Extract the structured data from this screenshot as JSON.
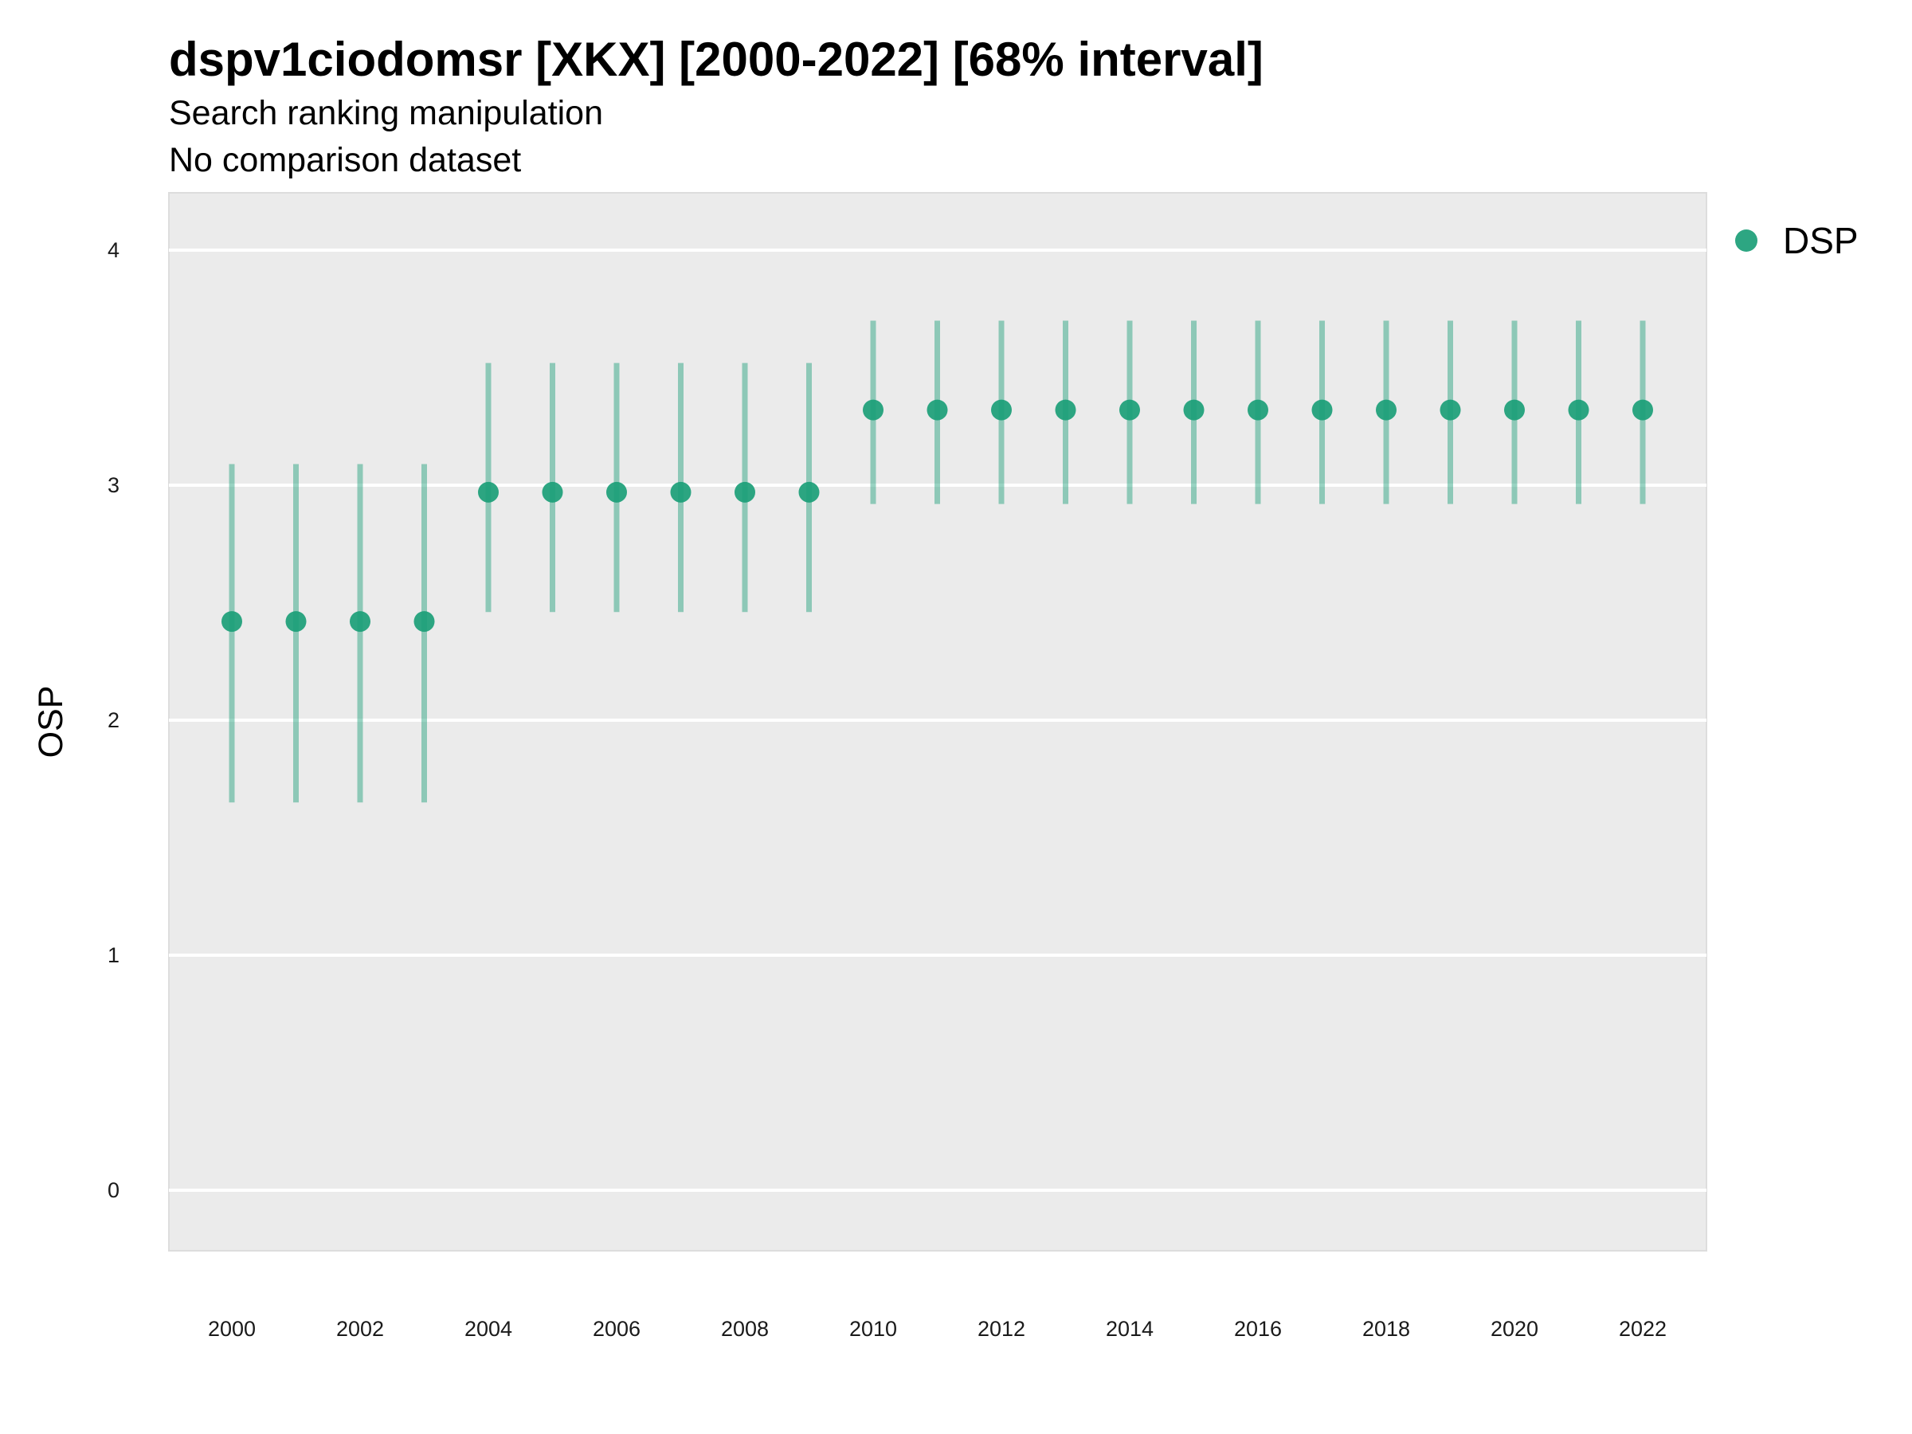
{
  "chart_data": {
    "type": "scatter",
    "title": "dspv1ciodomsr [XKX] [2000-2022] [68% interval]",
    "subtitle_lines": [
      "Search ranking manipulation",
      "No comparison dataset"
    ],
    "xlabel": "",
    "ylabel": "OSP",
    "ylim": [
      -0.25,
      4.25
    ],
    "xlim": [
      1999,
      2023
    ],
    "y_ticks": [
      "0",
      "1",
      "2",
      "3",
      "4"
    ],
    "x_ticks": [
      "2000",
      "2002",
      "2004",
      "2006",
      "2008",
      "2010",
      "2012",
      "2014",
      "2016",
      "2018",
      "2020",
      "2022"
    ],
    "grid": true,
    "legend_position": "right",
    "series": [
      {
        "name": "DSP",
        "color": "#1b9e77",
        "points": [
          {
            "x": 2000,
            "y": 2.42,
            "lower": 1.65,
            "upper": 3.09
          },
          {
            "x": 2001,
            "y": 2.42,
            "lower": 1.65,
            "upper": 3.09
          },
          {
            "x": 2002,
            "y": 2.42,
            "lower": 1.65,
            "upper": 3.09
          },
          {
            "x": 2003,
            "y": 2.42,
            "lower": 1.65,
            "upper": 3.09
          },
          {
            "x": 2004,
            "y": 2.97,
            "lower": 2.46,
            "upper": 3.52
          },
          {
            "x": 2005,
            "y": 2.97,
            "lower": 2.46,
            "upper": 3.52
          },
          {
            "x": 2006,
            "y": 2.97,
            "lower": 2.46,
            "upper": 3.52
          },
          {
            "x": 2007,
            "y": 2.97,
            "lower": 2.46,
            "upper": 3.52
          },
          {
            "x": 2008,
            "y": 2.97,
            "lower": 2.46,
            "upper": 3.52
          },
          {
            "x": 2009,
            "y": 2.97,
            "lower": 2.46,
            "upper": 3.52
          },
          {
            "x": 2010,
            "y": 3.32,
            "lower": 2.92,
            "upper": 3.7
          },
          {
            "x": 2011,
            "y": 3.32,
            "lower": 2.92,
            "upper": 3.7
          },
          {
            "x": 2012,
            "y": 3.32,
            "lower": 2.92,
            "upper": 3.7
          },
          {
            "x": 2013,
            "y": 3.32,
            "lower": 2.92,
            "upper": 3.7
          },
          {
            "x": 2014,
            "y": 3.32,
            "lower": 2.92,
            "upper": 3.7
          },
          {
            "x": 2015,
            "y": 3.32,
            "lower": 2.92,
            "upper": 3.7
          },
          {
            "x": 2016,
            "y": 3.32,
            "lower": 2.92,
            "upper": 3.7
          },
          {
            "x": 2017,
            "y": 3.32,
            "lower": 2.92,
            "upper": 3.7
          },
          {
            "x": 2018,
            "y": 3.32,
            "lower": 2.92,
            "upper": 3.7
          },
          {
            "x": 2019,
            "y": 3.32,
            "lower": 2.92,
            "upper": 3.7
          },
          {
            "x": 2020,
            "y": 3.32,
            "lower": 2.92,
            "upper": 3.7
          },
          {
            "x": 2021,
            "y": 3.32,
            "lower": 2.92,
            "upper": 3.7
          },
          {
            "x": 2022,
            "y": 3.32,
            "lower": 2.92,
            "upper": 3.7
          }
        ]
      }
    ]
  }
}
